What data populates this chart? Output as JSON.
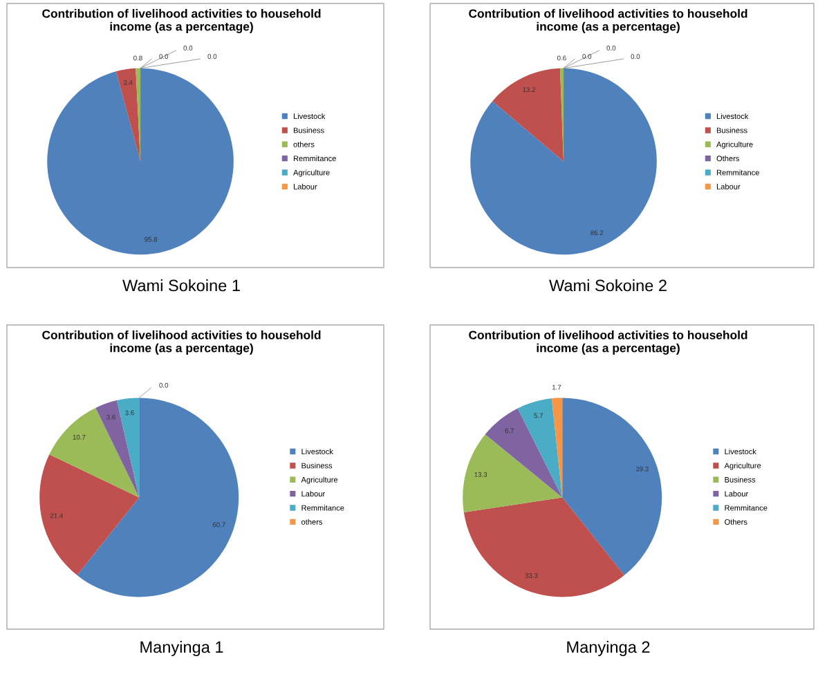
{
  "chart_data": [
    {
      "type": "pie",
      "title": "Contribution of livelihood activities to household\nincome (as a percentage)",
      "categories": [
        "Livestock",
        "Business",
        "others",
        "Remmitance",
        "Agriculture",
        "Labour"
      ],
      "values": [
        95.8,
        3.4,
        0.8,
        0.0,
        0.0,
        0.0
      ],
      "value_labels": [
        "95.8",
        "3.4",
        "0.8",
        "0.0",
        "0.0",
        "0.0"
      ],
      "colors": [
        "#4f81bd",
        "#c0504d",
        "#9bbb59",
        "#8064a2",
        "#4bacc6",
        "#f79646"
      ],
      "legend": "right",
      "annotations": [
        "Wami Sokoine 1"
      ]
    },
    {
      "type": "pie",
      "title": "Contribution of livelihood activities to household\nincome (as a percentage)",
      "categories": [
        "Livestock",
        "Business",
        "Agriculture",
        "Others",
        "Remmitance",
        "Labour"
      ],
      "values": [
        86.2,
        13.2,
        0.6,
        0.0,
        0.0,
        0.0
      ],
      "value_labels": [
        "86.2",
        "13.2",
        "0.6",
        "0.0",
        "0.0",
        "0.0"
      ],
      "colors": [
        "#4f81bd",
        "#c0504d",
        "#9bbb59",
        "#8064a2",
        "#4bacc6",
        "#f79646"
      ],
      "legend": "right",
      "annotations": [
        "Wami Sokoine 2"
      ]
    },
    {
      "type": "pie",
      "title": "Contribution of livelihood activities to household\nincome (as a percentage)",
      "categories": [
        "Livestock",
        "Business",
        "Agriculture",
        "Labour",
        "Remmitance",
        "others"
      ],
      "values": [
        60.7,
        21.4,
        10.7,
        3.6,
        3.6,
        0.0
      ],
      "value_labels": [
        "60.7",
        "21.4",
        "10.7",
        "3.6",
        "3.6",
        "0.0"
      ],
      "colors": [
        "#4f81bd",
        "#c0504d",
        "#9bbb59",
        "#8064a2",
        "#4bacc6",
        "#f79646"
      ],
      "legend": "right",
      "annotations": [
        "Manyinga 1"
      ]
    },
    {
      "type": "pie",
      "title": "Contribution of livelihood activities to household\nincome (as a percentage)",
      "categories": [
        "Livestock",
        "Agriculture",
        "Business",
        "Labour",
        "Remmitance",
        "Others"
      ],
      "values": [
        39.3,
        33.3,
        13.3,
        6.7,
        5.7,
        1.7
      ],
      "colors": [
        "#4f81bd",
        "#c0504d",
        "#9bbb59",
        "#8064a2",
        "#4bacc6",
        "#f79646"
      ],
      "data_labels": true,
      "legend": "right",
      "annotations": [
        "Manyinga 2"
      ]
    }
  ]
}
